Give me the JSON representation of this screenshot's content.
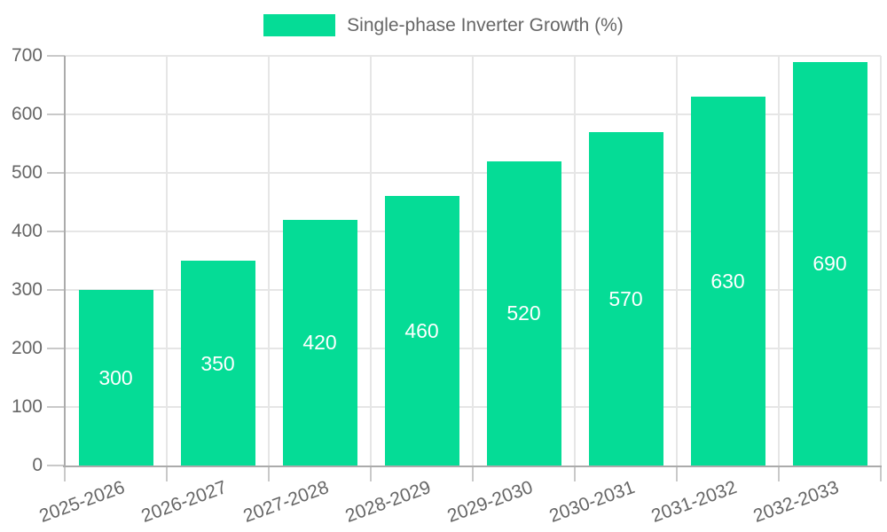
{
  "chart_data": {
    "type": "bar",
    "title": "Single-phase Inverter Growth (%)",
    "legend_entries": [
      "Single-phase Inverter Growth (%)"
    ],
    "legend_position": "top",
    "categories": [
      "2025-2026",
      "2026-2027",
      "2027-2028",
      "2028-2029",
      "2029-2030",
      "2030-2031",
      "2031-2032",
      "2032-2033"
    ],
    "values": [
      300,
      350,
      420,
      460,
      520,
      570,
      630,
      690
    ],
    "xlabel": "",
    "ylabel": "",
    "ylim": [
      0,
      700
    ],
    "yticks": [
      0,
      100,
      200,
      300,
      400,
      500,
      600,
      700
    ],
    "grid": true,
    "x_label_rotation_deg": -20,
    "data_labels_position": "center-inside",
    "colors": {
      "bar": "#05DC96",
      "grid": "#E6E6E6",
      "axis": "#ABABAB",
      "tick": "#C9C9C9",
      "text": "#666666",
      "data_label_text": "#FFFFFF",
      "background": "#FFFFFF"
    }
  }
}
